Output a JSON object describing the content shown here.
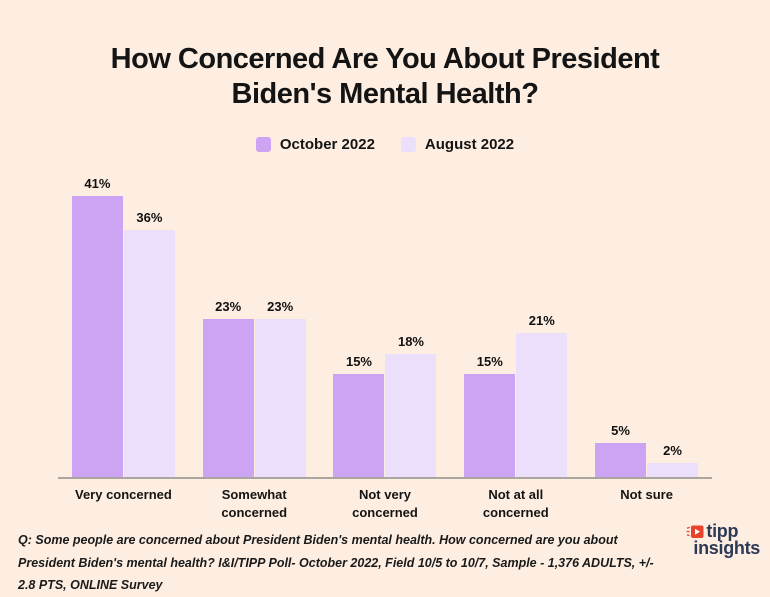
{
  "page": {
    "background": "#fdeee1"
  },
  "title": {
    "line1": "How Concerned Are You About President",
    "line2": "Biden's Mental Health?"
  },
  "chart_data": {
    "type": "bar",
    "title": "How Concerned Are You About President Biden's Mental Health?",
    "categories": [
      "Very concerned",
      "Somewhat concerned",
      "Not very concerned",
      "Not at all concerned",
      "Not sure"
    ],
    "series": [
      {
        "name": "October 2022",
        "color": "#cda4f3",
        "values": [
          41,
          23,
          15,
          15,
          5
        ]
      },
      {
        "name": "August 2022",
        "color": "#ecdffb",
        "values": [
          36,
          23,
          18,
          21,
          2
        ]
      }
    ],
    "value_suffix": "%",
    "ylim": [
      0,
      44
    ],
    "grid": false,
    "legend_position": "top",
    "xlabel": "",
    "ylabel": "",
    "axis_line_color": "#aaa59f"
  },
  "footnote": {
    "text": "Q: Some people are concerned about President Biden's mental health. How concerned are you about President Biden's mental health? I&I/TIPP Poll- October 2022, Field 10/5 to 10/7, Sample - 1,376 ADULTS, +/- 2.8 PTS, ONLINE Survey"
  },
  "logo": {
    "line1": "tipp",
    "line2": "insights",
    "icon": "tipp-play-icon",
    "text_color": "#2e3a55",
    "icon_color": "#e8432e"
  }
}
